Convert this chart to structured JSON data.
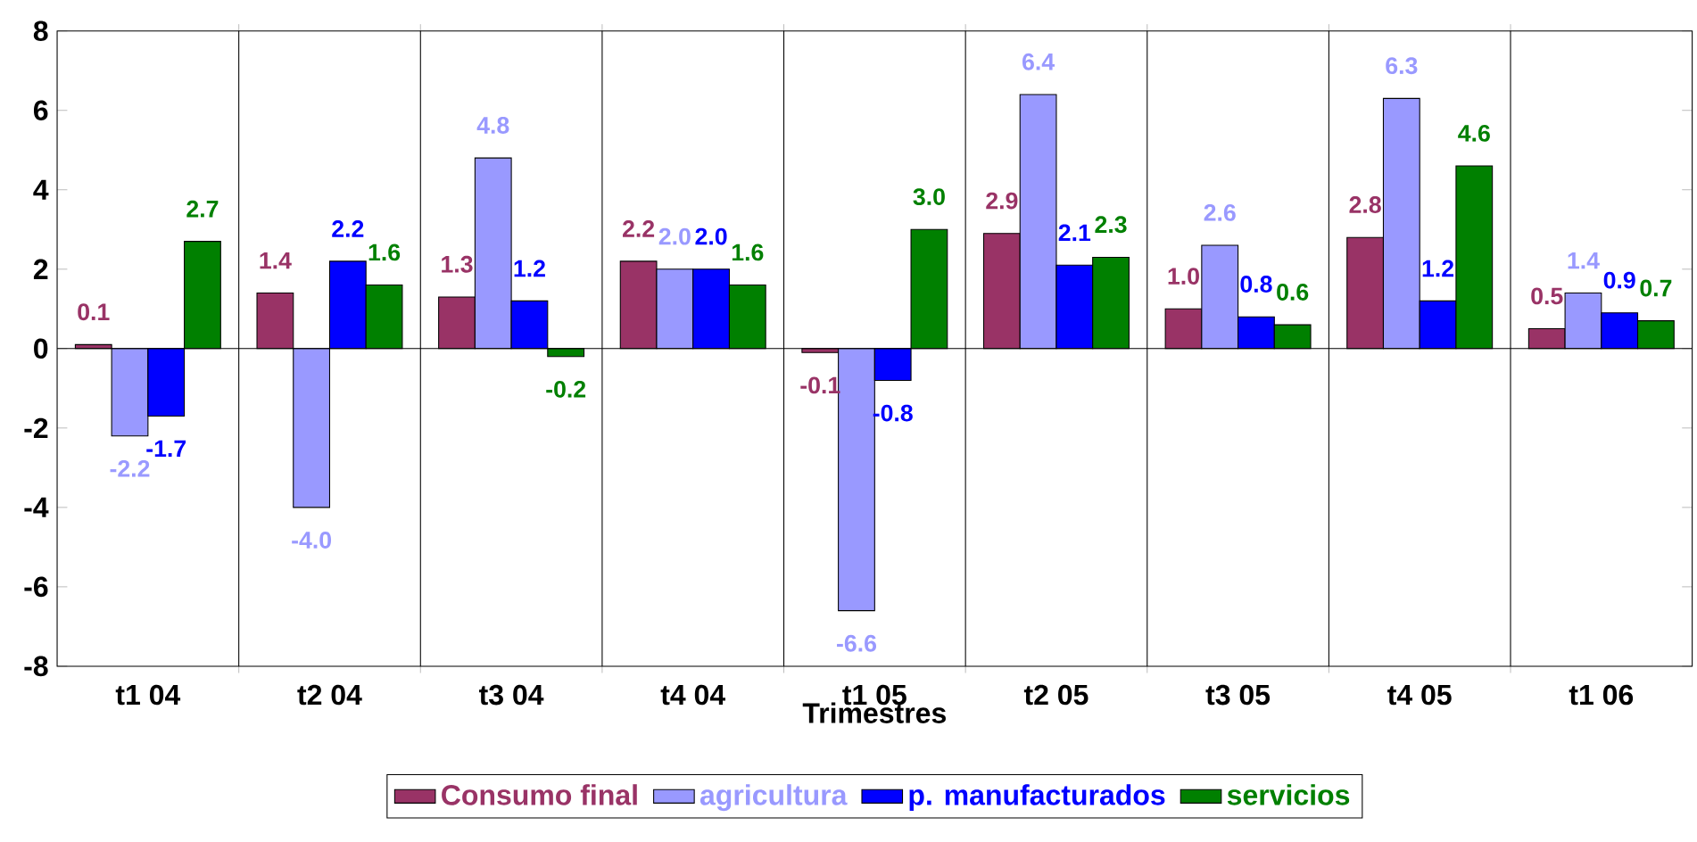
{
  "chart_data": {
    "type": "bar",
    "xlabel": "Trimestres",
    "categories": [
      "t1 04",
      "t2 04",
      "t3 04",
      "t4 04",
      "t1 05",
      "t2 05",
      "t3 05",
      "t4 05",
      "t1 06"
    ],
    "series": [
      {
        "name": "Consumo final",
        "color": "#993366",
        "values": [
          0.1,
          1.4,
          1.3,
          2.2,
          -0.1,
          2.9,
          1.0,
          2.8,
          0.5
        ],
        "value_labels": [
          "0.1",
          "1.4",
          "1.3",
          "2.2",
          "-0.1",
          "2.9",
          "1.0",
          "2.8",
          "0.5"
        ]
      },
      {
        "name": "agricultura",
        "color": "#9999ff",
        "values": [
          -2.2,
          -4.0,
          4.8,
          2.0,
          -6.6,
          6.4,
          2.6,
          6.3,
          1.4
        ],
        "value_labels": [
          "-2.2",
          "-4.0",
          "4.8",
          "2.0",
          "-6.6",
          "6.4",
          "2.6",
          "6.3",
          "1.4"
        ]
      },
      {
        "name": "p. manufacturados",
        "color": "#0000ff",
        "values": [
          -1.7,
          2.2,
          1.2,
          2.0,
          -0.8,
          2.1,
          0.8,
          1.2,
          0.9
        ],
        "value_labels": [
          "-1.7",
          "2.2",
          "1.2",
          "2.0",
          "-0.8",
          "2.1",
          "0.8",
          "1.2",
          "0.9"
        ]
      },
      {
        "name": "servicios",
        "color": "#008000",
        "values": [
          2.7,
          1.6,
          -0.2,
          1.6,
          3.0,
          2.3,
          0.6,
          4.6,
          0.7
        ],
        "value_labels": [
          "2.7",
          "1.6",
          "-0.2",
          "1.6",
          "3.0",
          "2.3",
          "0.6",
          "4.6",
          "0.7"
        ]
      }
    ],
    "ylim": [
      -8,
      8
    ],
    "yticks": [
      -8,
      -6,
      -4,
      -2,
      0,
      2,
      4,
      6,
      8
    ],
    "ref_lines": [
      {
        "axis": "y",
        "value": 0,
        "color": "#000000"
      }
    ],
    "grid": "x",
    "legend": "bottom"
  }
}
